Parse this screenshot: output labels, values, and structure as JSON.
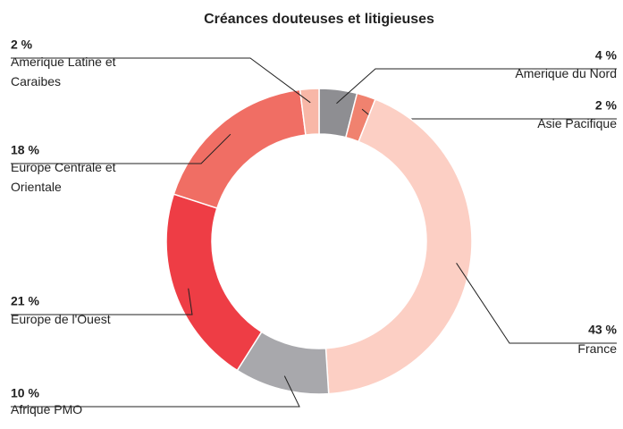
{
  "chart_data": {
    "type": "donut",
    "title": "Créances douteuses et litigieuses",
    "categories": [
      "Amerique du Nord",
      "Asie Pacifique",
      "France",
      "Afrique PMO",
      "Europe de l'Ouest",
      "Europe Centrale et Orientale",
      "Amerique Latine et Caraibes"
    ],
    "values": [
      4,
      2,
      43,
      10,
      21,
      18,
      2
    ],
    "value_labels": [
      "4 %",
      "2 %",
      "43 %",
      "10 %",
      "21 %",
      "18 %",
      "2 %"
    ],
    "colors": [
      "#8e8e92",
      "#f0826f",
      "#fccfc4",
      "#a8a8ac",
      "#ee3d45",
      "#f06e64",
      "#f8b7a7"
    ]
  }
}
